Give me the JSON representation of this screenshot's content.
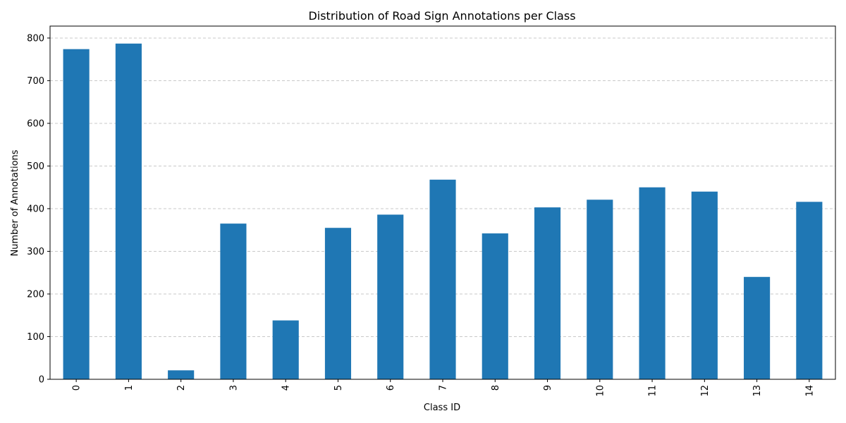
{
  "chart_data": {
    "type": "bar",
    "title": "Distribution of Road Sign Annotations per Class",
    "xlabel": "Class ID",
    "ylabel": "Number of Annotations",
    "categories": [
      "0",
      "1",
      "2",
      "3",
      "4",
      "5",
      "6",
      "7",
      "8",
      "9",
      "10",
      "11",
      "12",
      "13",
      "14"
    ],
    "values": [
      774,
      787,
      21,
      365,
      138,
      355,
      386,
      468,
      342,
      403,
      421,
      450,
      440,
      240,
      416
    ],
    "ylim": [
      0,
      828
    ],
    "yticks": [
      0,
      100,
      200,
      300,
      400,
      500,
      600,
      700,
      800
    ],
    "grid": "y-dashed",
    "bar_color": "#1f77b4",
    "grid_color": "#c8c8c8"
  }
}
